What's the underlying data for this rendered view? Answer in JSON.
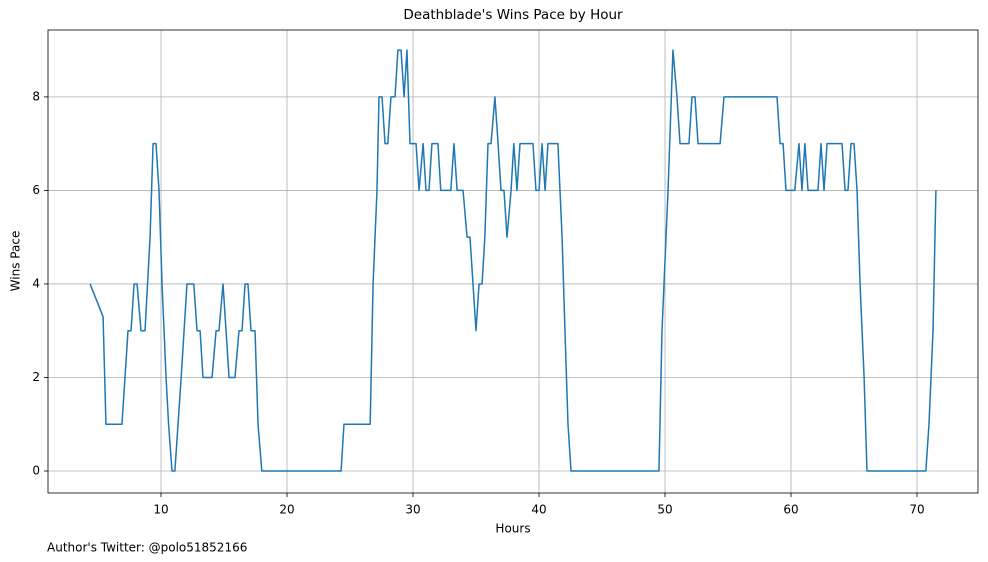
{
  "chart_data": {
    "type": "line",
    "title": "Deathblade's Wins Pace by Hour",
    "xlabel": "Hours",
    "ylabel": "Wins Pace",
    "footnote": "Author's Twitter: @polo51852166",
    "color": "#1f77b4",
    "grid": true,
    "xlim": [
      1.03,
      74.84
    ],
    "ylim": [
      -0.47,
      9.43
    ],
    "xticks": [
      10,
      20,
      30,
      40,
      50,
      60,
      70
    ],
    "yticks": [
      0,
      2,
      4,
      6,
      8
    ],
    "x": [
      4.37,
      5.4,
      5.63,
      6.9,
      7.38,
      7.62,
      7.86,
      8.1,
      8.41,
      8.73,
      9.13,
      9.37,
      9.6,
      9.84,
      10.08,
      10.4,
      10.6,
      10.87,
      11.1,
      11.6,
      12.06,
      12.6,
      12.86,
      13.1,
      13.33,
      14.05,
      14.37,
      14.6,
      14.92,
      15.16,
      15.4,
      15.87,
      16.19,
      16.43,
      16.67,
      16.9,
      17.14,
      17.46,
      17.7,
      18.0,
      24.29,
      24.52,
      26.6,
      26.83,
      27.14,
      27.3,
      27.54,
      27.78,
      28.0,
      28.25,
      28.57,
      28.8,
      29.05,
      29.29,
      29.52,
      29.76,
      30.24,
      30.48,
      30.8,
      31.03,
      31.27,
      31.5,
      31.98,
      32.2,
      33.0,
      33.25,
      33.5,
      33.97,
      34.29,
      34.52,
      34.76,
      35.0,
      35.24,
      35.48,
      35.7,
      35.95,
      36.19,
      36.5,
      36.75,
      36.98,
      37.22,
      37.46,
      37.78,
      38.0,
      38.25,
      38.49,
      39.52,
      39.76,
      40.0,
      40.24,
      40.48,
      40.71,
      41.5,
      41.83,
      42.06,
      42.3,
      42.54,
      49.52,
      49.76,
      50.24,
      50.63,
      50.95,
      51.19,
      51.9,
      52.14,
      52.38,
      52.62,
      54.37,
      54.68,
      58.89,
      59.13,
      59.37,
      59.6,
      60.3,
      60.63,
      60.87,
      61.1,
      61.35,
      62.14,
      62.38,
      62.62,
      62.86,
      64.05,
      64.29,
      64.52,
      64.76,
      65.0,
      65.24,
      65.48,
      65.8,
      66.03,
      70.7,
      70.95,
      71.27,
      71.5
    ],
    "values": [
      4,
      3.3,
      1,
      1,
      3,
      3,
      4,
      4,
      3,
      3,
      5,
      7,
      7,
      6,
      4,
      2,
      1,
      0,
      0,
      2,
      4,
      4,
      3,
      3,
      2,
      2,
      3,
      3,
      4,
      3,
      2,
      2,
      3,
      3,
      4,
      4,
      3,
      3,
      1,
      0,
      0,
      1,
      1,
      4,
      6,
      8,
      8,
      7,
      7,
      8,
      8,
      9,
      9,
      8,
      9,
      7,
      7,
      6,
      7,
      6,
      6,
      7,
      7,
      6,
      6,
      7,
      6,
      6,
      5,
      5,
      4,
      3,
      4,
      4,
      5,
      7,
      7,
      8,
      7,
      6,
      6,
      5,
      6,
      7,
      6,
      7,
      7,
      6,
      6,
      7,
      6,
      7,
      7,
      5,
      3,
      1,
      0,
      0,
      3,
      6,
      9,
      8,
      7,
      7,
      8,
      8,
      7,
      7,
      8,
      8,
      7,
      7,
      6,
      6,
      7,
      6,
      7,
      6,
      6,
      7,
      6,
      7,
      7,
      6,
      6,
      7,
      7,
      6,
      4,
      2,
      0,
      0,
      1,
      3,
      6
    ]
  }
}
